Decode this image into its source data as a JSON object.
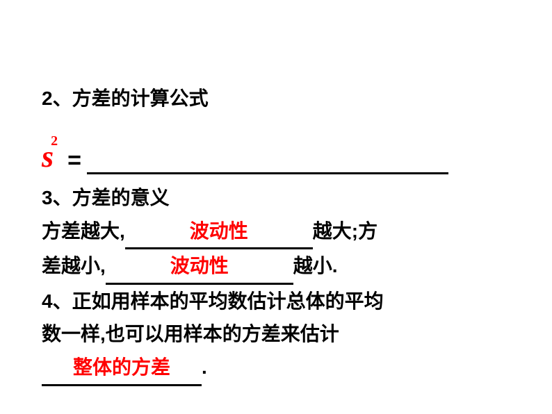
{
  "colors": {
    "text_black": "#000000",
    "answer_red": "#ff0000",
    "background": "#ffffff"
  },
  "typography": {
    "body_fontsize": 28,
    "body_fontweight": "bold",
    "s_fontsize": 44,
    "sup_fontsize": 20
  },
  "section2": {
    "title": "2、方差的计算公式",
    "variable_base": "s",
    "variable_sup": "2",
    "equals": "="
  },
  "section3": {
    "title": "3、方差的意义",
    "line1_pre": "方差越大,",
    "line1_ans": "波动性",
    "line1_post": "越大;方",
    "line2_pre": "差越小,",
    "line2_ans": "波动性",
    "line2_post": "越小."
  },
  "section4": {
    "line1": "4、正如用样本的平均数估计总体的平均",
    "line2_pre": "数一样,也可以用样本的方差来估计",
    "line3_ans": "整体的方差",
    "line3_post": "."
  }
}
